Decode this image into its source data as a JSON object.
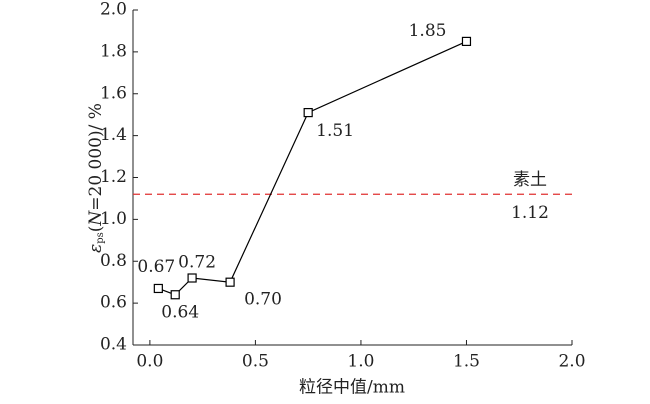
{
  "chart_data": {
    "type": "line",
    "xlabel": "粒径中值/mm",
    "ylabel": [
      "ε",
      "ps",
      "(",
      "N",
      "=20 000)/ %"
    ],
    "x": [
      0.04,
      0.12,
      0.2,
      0.38,
      0.75,
      1.5
    ],
    "series": [
      {
        "color": "#000000",
        "values": [
          0.67,
          0.64,
          0.72,
          0.7,
          1.51,
          1.85
        ],
        "value_labels": [
          "0.67",
          "0.64",
          "0.72",
          "0.70",
          "1.51",
          "1.85"
        ]
      }
    ],
    "reference_line": {
      "value": 1.12,
      "label": "素土",
      "color": "#e03030"
    },
    "xlim": [
      -0.08,
      2.0
    ],
    "xticks": [
      {
        "value": 0,
        "label": "0.0"
      },
      0.5,
      {
        "value": 1,
        "label": "1.0"
      },
      1.5,
      {
        "value": 2,
        "label": "2.0"
      }
    ],
    "ylim": [
      0.4,
      2.0
    ],
    "yticks": [
      0.4,
      0.6,
      0.8,
      {
        "value": 1,
        "label": "1.0"
      },
      1.2,
      1.4,
      1.6,
      1.8,
      {
        "value": 2,
        "label": "2.0"
      }
    ]
  }
}
